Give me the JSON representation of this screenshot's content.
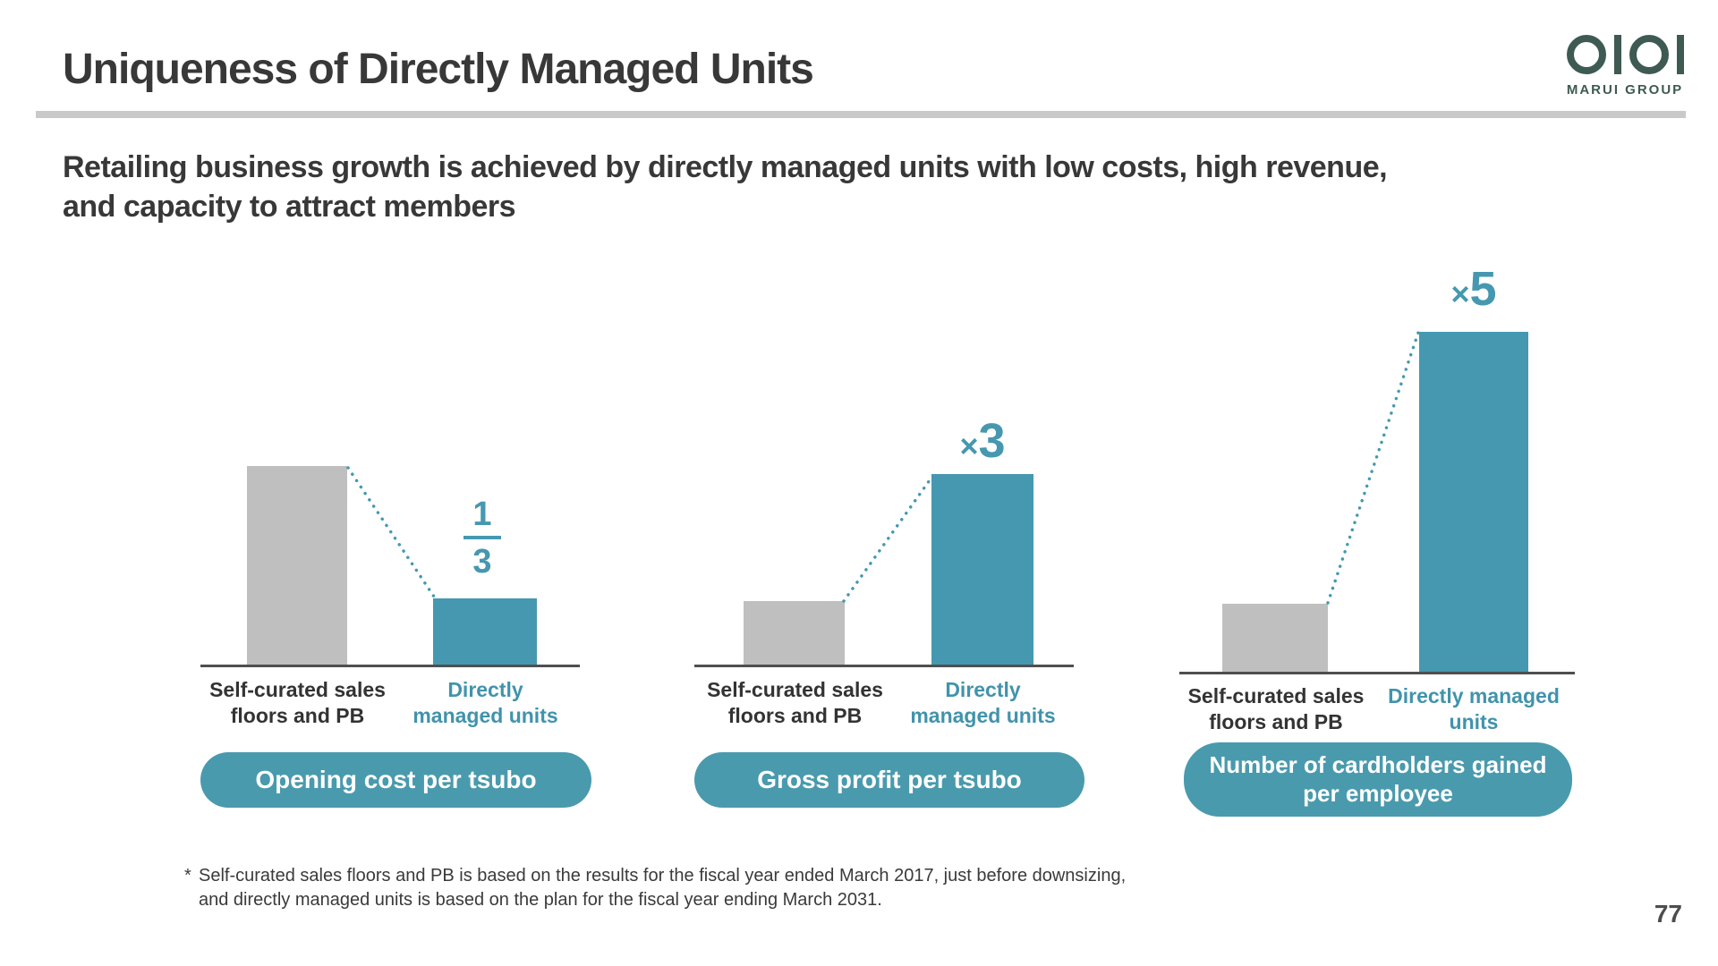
{
  "slide": {
    "title": "Uniqueness of Directly Managed Units",
    "subtitle_line1": "Retailing business growth is achieved by directly managed units with low costs, high revenue,",
    "subtitle_line2": "and capacity to attract members",
    "logo": {
      "brand": "MARUI GROUP"
    },
    "footnote_marker": "*",
    "footnote_line1": "Self-curated sales floors and PB is based on the results for the fiscal year ended March 2017, just before downsizing,",
    "footnote_line2": "and directly managed units is based on the plan for the fiscal year ending March 2031.",
    "page_number": "77"
  },
  "colors": {
    "teal": "#4598b0",
    "gray_bar": "#bfbfbf",
    "text_dark": "#383838",
    "logo_green": "#3e5a52"
  },
  "chart_data": [
    {
      "type": "bar",
      "title": "Opening cost per tsubo",
      "categories": [
        "Self-curated sales floors and PB",
        "Directly managed units"
      ],
      "values": [
        3,
        1
      ],
      "annotation": "1/3",
      "note": "directly managed units are one third of self-curated sales floors and PB"
    },
    {
      "type": "bar",
      "title": "Gross profit per tsubo",
      "categories": [
        "Self-curated sales floors and PB",
        "Directly managed units"
      ],
      "values": [
        1,
        3
      ],
      "annotation": "×3",
      "note": "directly managed units are three times self-curated sales floors and PB"
    },
    {
      "type": "bar",
      "title": "Number of cardholders gained per employee",
      "categories": [
        "Self-curated sales floors and PB",
        "Directly managed units"
      ],
      "values": [
        1,
        5
      ],
      "annotation": "×5",
      "note": "directly managed units are five times self-curated sales floors and PB"
    }
  ],
  "charts": [
    {
      "cat1_line1": "Self-curated sales",
      "cat1_line2": "floors and PB",
      "cat2_line1": "Directly",
      "cat2_line2": "managed units",
      "fraction": {
        "numerator": "1",
        "denominator": "3"
      }
    },
    {
      "cat1_line1": "Self-curated sales",
      "cat1_line2": "floors and PB",
      "cat2_line1": "Directly",
      "cat2_line2": "managed units",
      "multiplier_sign": "×",
      "multiplier_value": "3"
    },
    {
      "cat1_line1": "Self-curated sales",
      "cat1_line2": "floors and PB",
      "cat2_line1": "Directly managed",
      "cat2_line2": "units",
      "multiplier_sign": "×",
      "multiplier_value": "5",
      "pill_line1": "Number of cardholders gained",
      "pill_line2": "per employee"
    }
  ]
}
